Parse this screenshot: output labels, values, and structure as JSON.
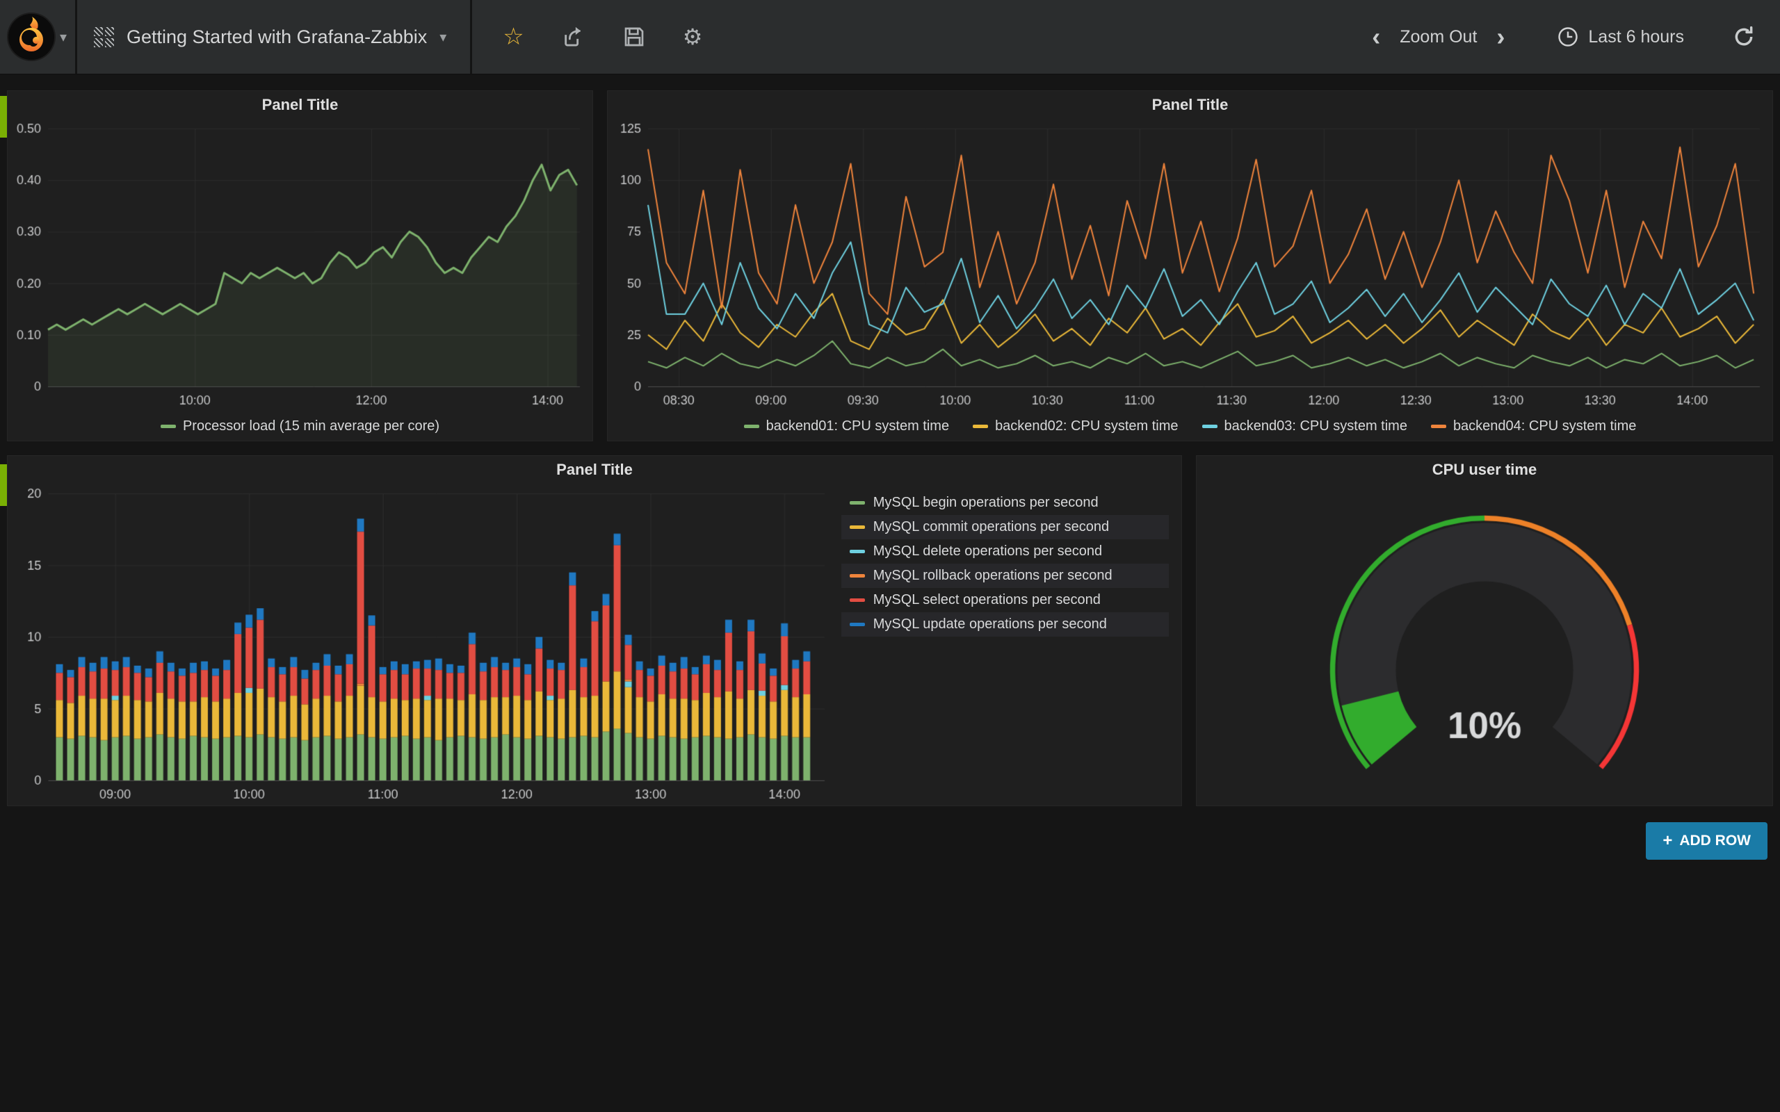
{
  "navbar": {
    "title": "Getting Started with Grafana-Zabbix",
    "title_caret": "▾",
    "logo_caret": "▾",
    "star_icon": "☆",
    "gear_icon": "⚙",
    "zoom_out_label": "Zoom Out",
    "chevron_left": "‹",
    "chevron_right": "›",
    "time_range_label": "Last 6 hours"
  },
  "dashboard": {
    "add_row_plus": "+",
    "add_row_label": "ADD ROW"
  },
  "colors": {
    "green": "#7eb26d",
    "yellow": "#eab839",
    "cyan": "#6ed0e0",
    "orange": "#ef843c",
    "red": "#e24d42",
    "blue": "#1f78c1",
    "gauge_green": "#32ac2d",
    "gauge_orange": "#ed8128",
    "gauge_red": "#f53636",
    "row_strip": "#7ab004",
    "add_row_bg": "#1a7ba7"
  },
  "chart_data": [
    {
      "type": "line",
      "title": "Panel Title",
      "legend_position": "bottom",
      "x_range": [
        500,
        862
      ],
      "x_ticks": [
        {
          "v": 600,
          "l": "10:00"
        },
        {
          "v": 720,
          "l": "12:00"
        },
        {
          "v": 840,
          "l": "14:00"
        }
      ],
      "ylim": [
        0,
        0.5
      ],
      "y_ticks": [
        {
          "v": 0,
          "l": "0"
        },
        {
          "v": 0.1,
          "l": "0.10"
        },
        {
          "v": 0.2,
          "l": "0.20"
        },
        {
          "v": 0.3,
          "l": "0.30"
        },
        {
          "v": 0.4,
          "l": "0.40"
        },
        {
          "v": 0.5,
          "l": "0.50"
        }
      ],
      "x_start": 500,
      "x_step": 6,
      "series": [
        {
          "name": "Processor load (15 min average per core)",
          "color": "#7eb26d",
          "fill": true,
          "width": 3,
          "values": [
            0.11,
            0.12,
            0.11,
            0.12,
            0.13,
            0.12,
            0.13,
            0.14,
            0.15,
            0.14,
            0.15,
            0.16,
            0.15,
            0.14,
            0.15,
            0.16,
            0.15,
            0.14,
            0.15,
            0.16,
            0.22,
            0.21,
            0.2,
            0.22,
            0.21,
            0.22,
            0.23,
            0.22,
            0.21,
            0.22,
            0.2,
            0.21,
            0.24,
            0.26,
            0.25,
            0.23,
            0.24,
            0.26,
            0.27,
            0.25,
            0.28,
            0.3,
            0.29,
            0.27,
            0.24,
            0.22,
            0.23,
            0.22,
            0.25,
            0.27,
            0.29,
            0.28,
            0.31,
            0.33,
            0.36,
            0.4,
            0.43,
            0.38,
            0.41,
            0.42,
            0.39
          ]
        }
      ]
    },
    {
      "type": "line",
      "title": "Panel Title",
      "legend_position": "bottom",
      "x_range": [
        500,
        862
      ],
      "x_ticks": [
        {
          "v": 510,
          "l": "08:30"
        },
        {
          "v": 540,
          "l": "09:00"
        },
        {
          "v": 570,
          "l": "09:30"
        },
        {
          "v": 600,
          "l": "10:00"
        },
        {
          "v": 630,
          "l": "10:30"
        },
        {
          "v": 660,
          "l": "11:00"
        },
        {
          "v": 690,
          "l": "11:30"
        },
        {
          "v": 720,
          "l": "12:00"
        },
        {
          "v": 750,
          "l": "12:30"
        },
        {
          "v": 780,
          "l": "13:00"
        },
        {
          "v": 810,
          "l": "13:30"
        },
        {
          "v": 840,
          "l": "14:00"
        }
      ],
      "ylim": [
        0,
        125
      ],
      "y_ticks": [
        {
          "v": 0,
          "l": "0"
        },
        {
          "v": 25,
          "l": "25"
        },
        {
          "v": 50,
          "l": "50"
        },
        {
          "v": 75,
          "l": "75"
        },
        {
          "v": 100,
          "l": "100"
        },
        {
          "v": 125,
          "l": "125"
        }
      ],
      "x_start": 500,
      "x_step": 6,
      "series": [
        {
          "name": "backend01: CPU system time",
          "color": "#7eb26d",
          "width": 2,
          "values": [
            12,
            9,
            14,
            10,
            16,
            11,
            9,
            13,
            10,
            15,
            22,
            11,
            9,
            14,
            10,
            12,
            18,
            10,
            13,
            9,
            11,
            15,
            10,
            12,
            9,
            14,
            11,
            16,
            10,
            12,
            9,
            13,
            17,
            10,
            12,
            15,
            9,
            11,
            14,
            10,
            13,
            9,
            12,
            16,
            10,
            14,
            11,
            9,
            15,
            12,
            10,
            14,
            9,
            13,
            11,
            16,
            10,
            12,
            15,
            9,
            13
          ]
        },
        {
          "name": "backend02: CPU system time",
          "color": "#eab839",
          "width": 2,
          "values": [
            25,
            18,
            32,
            22,
            40,
            26,
            19,
            30,
            24,
            36,
            45,
            22,
            18,
            33,
            25,
            28,
            42,
            21,
            30,
            19,
            26,
            35,
            22,
            28,
            20,
            33,
            26,
            38,
            23,
            28,
            20,
            31,
            40,
            24,
            27,
            34,
            21,
            26,
            32,
            23,
            30,
            21,
            28,
            37,
            24,
            32,
            26,
            20,
            35,
            27,
            23,
            33,
            20,
            30,
            26,
            38,
            24,
            28,
            34,
            21,
            30
          ]
        },
        {
          "name": "backend03: CPU system time",
          "color": "#6ed0e0",
          "width": 2,
          "values": [
            88,
            35,
            35,
            50,
            30,
            60,
            38,
            28,
            45,
            33,
            55,
            70,
            30,
            26,
            48,
            36,
            40,
            62,
            31,
            44,
            28,
            38,
            52,
            33,
            42,
            30,
            49,
            38,
            57,
            34,
            42,
            30,
            46,
            60,
            35,
            40,
            51,
            31,
            38,
            47,
            34,
            45,
            31,
            42,
            55,
            36,
            48,
            39,
            30,
            52,
            40,
            34,
            49,
            30,
            45,
            38,
            57,
            35,
            42,
            50,
            32
          ]
        },
        {
          "name": "backend04: CPU system time",
          "color": "#ef843c",
          "width": 2,
          "values": [
            115,
            60,
            45,
            95,
            38,
            105,
            55,
            40,
            88,
            50,
            70,
            108,
            45,
            35,
            92,
            58,
            65,
            112,
            48,
            75,
            40,
            60,
            98,
            52,
            78,
            44,
            90,
            62,
            108,
            55,
            80,
            46,
            72,
            110,
            58,
            68,
            95,
            50,
            64,
            86,
            52,
            75,
            48,
            70,
            100,
            60,
            85,
            65,
            50,
            112,
            90,
            55,
            95,
            48,
            80,
            62,
            116,
            58,
            78,
            108,
            45
          ]
        }
      ]
    },
    {
      "type": "bars",
      "title": "Panel Title",
      "legend_position": "right-table",
      "x_range": [
        510,
        858
      ],
      "x_ticks": [
        {
          "v": 540,
          "l": "09:00"
        },
        {
          "v": 600,
          "l": "10:00"
        },
        {
          "v": 660,
          "l": "11:00"
        },
        {
          "v": 720,
          "l": "12:00"
        },
        {
          "v": 780,
          "l": "13:00"
        },
        {
          "v": 840,
          "l": "14:00"
        }
      ],
      "ylim": [
        0,
        20
      ],
      "y_ticks": [
        {
          "v": 0,
          "l": "0"
        },
        {
          "v": 5,
          "l": "5"
        },
        {
          "v": 10,
          "l": "10"
        },
        {
          "v": 15,
          "l": "15"
        },
        {
          "v": 20,
          "l": "20"
        }
      ],
      "x_start": 515,
      "x_step": 5,
      "series": [
        {
          "name": "MySQL begin operations per second",
          "color": "#7eb26d",
          "values": [
            3.0,
            2.9,
            3.1,
            3.0,
            2.8,
            3.0,
            3.1,
            2.9,
            3.0,
            3.2,
            3.0,
            2.9,
            3.1,
            3.0,
            2.9,
            3.0,
            3.1,
            3.0,
            3.2,
            3.0,
            2.9,
            3.0,
            2.8,
            3.0,
            3.1,
            2.9,
            3.0,
            3.2,
            3.0,
            2.9,
            3.0,
            3.1,
            2.9,
            3.0,
            2.8,
            3.0,
            3.1,
            3.0,
            2.9,
            3.0,
            3.2,
            3.0,
            2.9,
            3.1,
            3.0,
            2.9,
            3.0,
            3.1,
            3.0,
            3.4,
            3.6,
            3.3,
            3.0,
            2.9,
            3.1,
            3.0,
            2.9,
            3.0,
            3.1,
            3.0,
            2.9,
            3.0,
            3.2,
            3.0,
            2.9,
            3.1,
            3.0,
            3.0
          ]
        },
        {
          "name": "MySQL commit operations per second",
          "color": "#eab839",
          "values": [
            2.6,
            2.5,
            2.8,
            2.7,
            2.9,
            2.6,
            2.8,
            2.7,
            2.5,
            2.9,
            2.7,
            2.6,
            2.4,
            2.8,
            2.6,
            2.7,
            3.0,
            3.1,
            3.2,
            2.8,
            2.6,
            2.9,
            2.5,
            2.7,
            2.8,
            2.6,
            2.9,
            3.4,
            2.8,
            2.6,
            2.7,
            2.5,
            2.8,
            2.6,
            2.9,
            2.7,
            2.5,
            3.0,
            2.7,
            2.8,
            2.6,
            2.9,
            2.7,
            3.1,
            2.6,
            2.8,
            3.3,
            2.7,
            2.9,
            3.5,
            4.0,
            3.2,
            2.8,
            2.6,
            2.9,
            2.7,
            2.8,
            2.6,
            3.0,
            2.8,
            3.3,
            2.7,
            3.1,
            2.9,
            2.6,
            3.2,
            2.8,
            3.0
          ]
        },
        {
          "name": "MySQL delete operations per second",
          "color": "#6ed0e0",
          "values": [
            0,
            0,
            0,
            0,
            0,
            0.3,
            0,
            0,
            0,
            0,
            0,
            0,
            0,
            0,
            0,
            0,
            0,
            0.35,
            0,
            0,
            0,
            0,
            0,
            0,
            0,
            0,
            0,
            0,
            0,
            0,
            0,
            0,
            0,
            0.3,
            0,
            0,
            0,
            0,
            0,
            0,
            0,
            0,
            0,
            0,
            0.3,
            0,
            0,
            0,
            0,
            0,
            0,
            0.4,
            0,
            0,
            0,
            0,
            0,
            0,
            0,
            0,
            0,
            0,
            0,
            0.35,
            0,
            0.35,
            0,
            0
          ]
        },
        {
          "name": "MySQL rollback operations per second",
          "color": "#ef843c",
          "values": [
            0,
            0,
            0,
            0,
            0,
            0,
            0,
            0,
            0,
            0,
            0,
            0,
            0,
            0,
            0,
            0,
            0,
            0,
            0,
            0,
            0,
            0,
            0,
            0,
            0,
            0,
            0,
            0.15,
            0,
            0,
            0,
            0,
            0,
            0,
            0,
            0,
            0,
            0,
            0,
            0,
            0,
            0,
            0,
            0,
            0,
            0,
            0,
            0,
            0,
            0,
            0,
            0.15,
            0,
            0,
            0,
            0,
            0,
            0,
            0,
            0,
            0,
            0,
            0,
            0,
            0,
            0,
            0,
            0
          ]
        },
        {
          "name": "MySQL select operations per second",
          "color": "#e24d42",
          "values": [
            1.9,
            1.8,
            2.0,
            1.9,
            2.1,
            1.8,
            2.0,
            1.9,
            1.7,
            2.1,
            1.9,
            1.8,
            2.0,
            1.9,
            1.8,
            2.0,
            4.1,
            4.2,
            4.8,
            2.1,
            1.9,
            2.0,
            1.8,
            2.0,
            2.1,
            1.9,
            2.2,
            10.6,
            5.0,
            1.9,
            2.0,
            1.8,
            2.1,
            1.9,
            2.0,
            1.8,
            1.9,
            3.5,
            2.0,
            2.1,
            1.9,
            2.0,
            1.8,
            3.0,
            1.9,
            2.0,
            7.3,
            2.1,
            5.2,
            5.3,
            8.8,
            2.4,
            1.9,
            1.8,
            2.0,
            1.9,
            2.1,
            1.8,
            2.0,
            1.9,
            4.1,
            2.0,
            4.1,
            1.9,
            1.8,
            3.4,
            2.0,
            2.3
          ]
        },
        {
          "name": "MySQL update operations per second",
          "color": "#1f78c1",
          "values": [
            0.6,
            0.5,
            0.7,
            0.6,
            0.8,
            0.6,
            0.7,
            0.5,
            0.6,
            0.8,
            0.6,
            0.5,
            0.7,
            0.6,
            0.5,
            0.7,
            0.8,
            0.9,
            0.8,
            0.6,
            0.5,
            0.7,
            0.6,
            0.5,
            0.8,
            0.6,
            0.7,
            0.9,
            0.7,
            0.5,
            0.6,
            0.7,
            0.5,
            0.6,
            0.8,
            0.6,
            0.5,
            0.8,
            0.6,
            0.7,
            0.5,
            0.6,
            0.7,
            0.8,
            0.6,
            0.5,
            0.9,
            0.6,
            0.7,
            0.8,
            0.8,
            0.7,
            0.6,
            0.5,
            0.7,
            0.6,
            0.8,
            0.5,
            0.6,
            0.7,
            0.9,
            0.6,
            0.8,
            0.7,
            0.5,
            0.9,
            0.6,
            0.7
          ]
        }
      ]
    },
    {
      "type": "gauge",
      "title": "CPU user time",
      "value": 10,
      "formatted": "10%",
      "min": 0,
      "max": 100,
      "span_deg": 260,
      "band_color": "#2c2c2e",
      "thresholds": [
        {
          "upto": 50,
          "color": "#32ac2d"
        },
        {
          "upto": 78,
          "color": "#ed8128"
        },
        {
          "upto": 100,
          "color": "#f53636"
        }
      ]
    }
  ]
}
